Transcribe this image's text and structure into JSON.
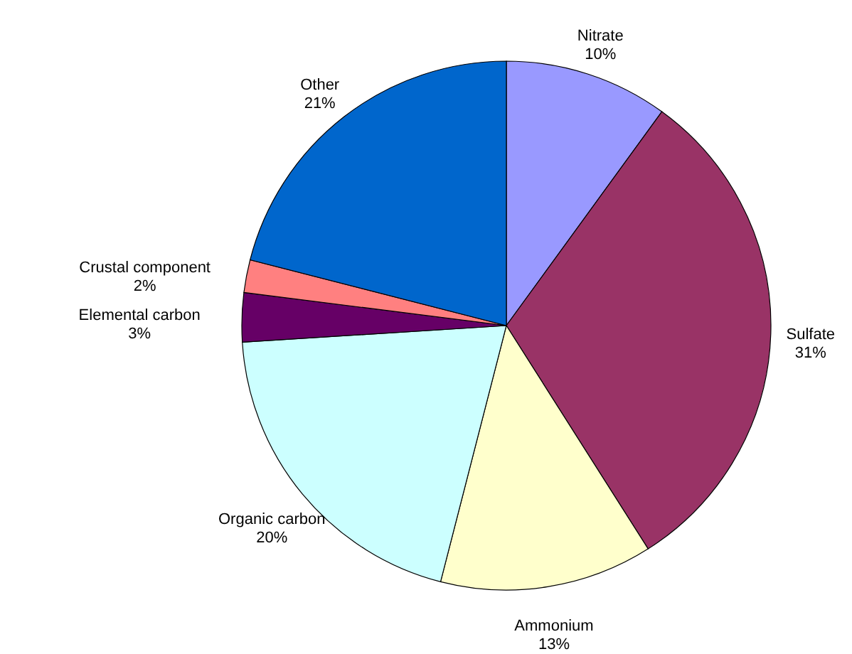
{
  "chart_data": {
    "type": "pie",
    "categories": [
      "Nitrate",
      "Sulfate",
      "Ammonium",
      "Organic carbon",
      "Elemental carbon",
      "Crustal component",
      "Other"
    ],
    "values": [
      10,
      31,
      13,
      20,
      3,
      2,
      21
    ],
    "colors": [
      "#9999ff",
      "#993366",
      "#ffffcc",
      "#ccffff",
      "#660066",
      "#ff8080",
      "#0066cc"
    ],
    "value_labels": [
      "10%",
      "31%",
      "13%",
      "20%",
      "3%",
      "2%",
      "21%"
    ]
  }
}
